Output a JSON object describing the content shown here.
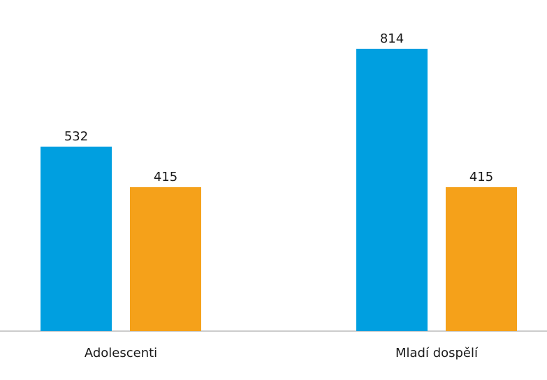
{
  "chart_data": {
    "type": "bar",
    "title": "",
    "xlabel": "",
    "ylabel": "",
    "categories": [
      "Adolescenti",
      "Mladí dospělí"
    ],
    "series": [
      {
        "values": [
          532,
          814
        ],
        "color": "#009FE0"
      },
      {
        "values": [
          415,
          415
        ],
        "color": "#F5A11A"
      }
    ],
    "ylim": [
      0,
      850
    ],
    "grid": false,
    "legend": "none",
    "axis_color": "#CCCCCC"
  }
}
